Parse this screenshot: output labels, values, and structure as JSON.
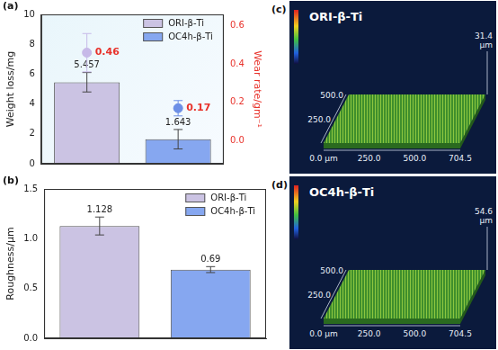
{
  "chart_data": [
    {
      "type": "bar",
      "label": "(a)",
      "categories": [
        "ORI-β-Ti",
        "OC4h-β-Ti"
      ],
      "y_label": "Weight loss/mg",
      "y2_label": "Wear rate/gm⁻¹",
      "ylim": [
        0,
        10
      ],
      "yticks": [
        0,
        2,
        4,
        6,
        8,
        10
      ],
      "y2lim": [
        -0.12,
        0.66
      ],
      "y2ticks": [
        {
          "value": 0,
          "label": "0.0"
        },
        0.2,
        0.4,
        0.6
      ],
      "series": [
        {
          "type": "bar",
          "colors": [
            "#cbc3e3",
            "#86a7f0"
          ],
          "values": [
            5.457,
            1.643
          ],
          "errors": [
            0.65,
            0.65
          ],
          "data_labels": true
        },
        {
          "type": "scatter",
          "axis": "y2",
          "colors": [
            "#c7b9e8",
            "#6d8fe6"
          ],
          "color": "#e8322b",
          "values": [
            0.46,
            0.17
          ],
          "errors": [
            0.1,
            0.04
          ],
          "data_labels": true
        }
      ],
      "legend": "upper right",
      "tick_labels": "y",
      "grid": false
    },
    {
      "type": "bar",
      "label": "(b)",
      "categories": [
        "ORI-β-Ti",
        "OC4h-β-Ti"
      ],
      "y_label": "Roughness/μm",
      "ylim": [
        0,
        1.5
      ],
      "yticks": [
        {
          "value": 0,
          "label": "0.0"
        },
        0.5,
        {
          "value": 1,
          "label": "1.0"
        },
        1.5
      ],
      "series": [
        {
          "type": "bar",
          "colors": [
            "#cbc3e3",
            "#86a7f0"
          ],
          "values": [
            1.128,
            0.69
          ],
          "errors": [
            0.09,
            0.03
          ],
          "data_labels": true
        }
      ],
      "legend": "upper right",
      "tick_labels": "y",
      "grid": false
    }
  ],
  "surface_views": [
    {
      "label": "(c)",
      "title": "ORI-β-Ti",
      "z_max": "31.4",
      "z_unit": "μm",
      "y_labels": [
        "500.0",
        "250.0"
      ],
      "x_labels": [
        "0.0 μm",
        "250.0",
        "500.0",
        "704.5"
      ]
    },
    {
      "label": "(d)",
      "title": "OC4h-β-Ti",
      "z_max": "54.6",
      "z_unit": "μm",
      "y_labels": [
        "500.0",
        "250.0"
      ],
      "x_labels": [
        "0.0 μm",
        "250.0",
        "500.0",
        "704.5"
      ]
    }
  ]
}
